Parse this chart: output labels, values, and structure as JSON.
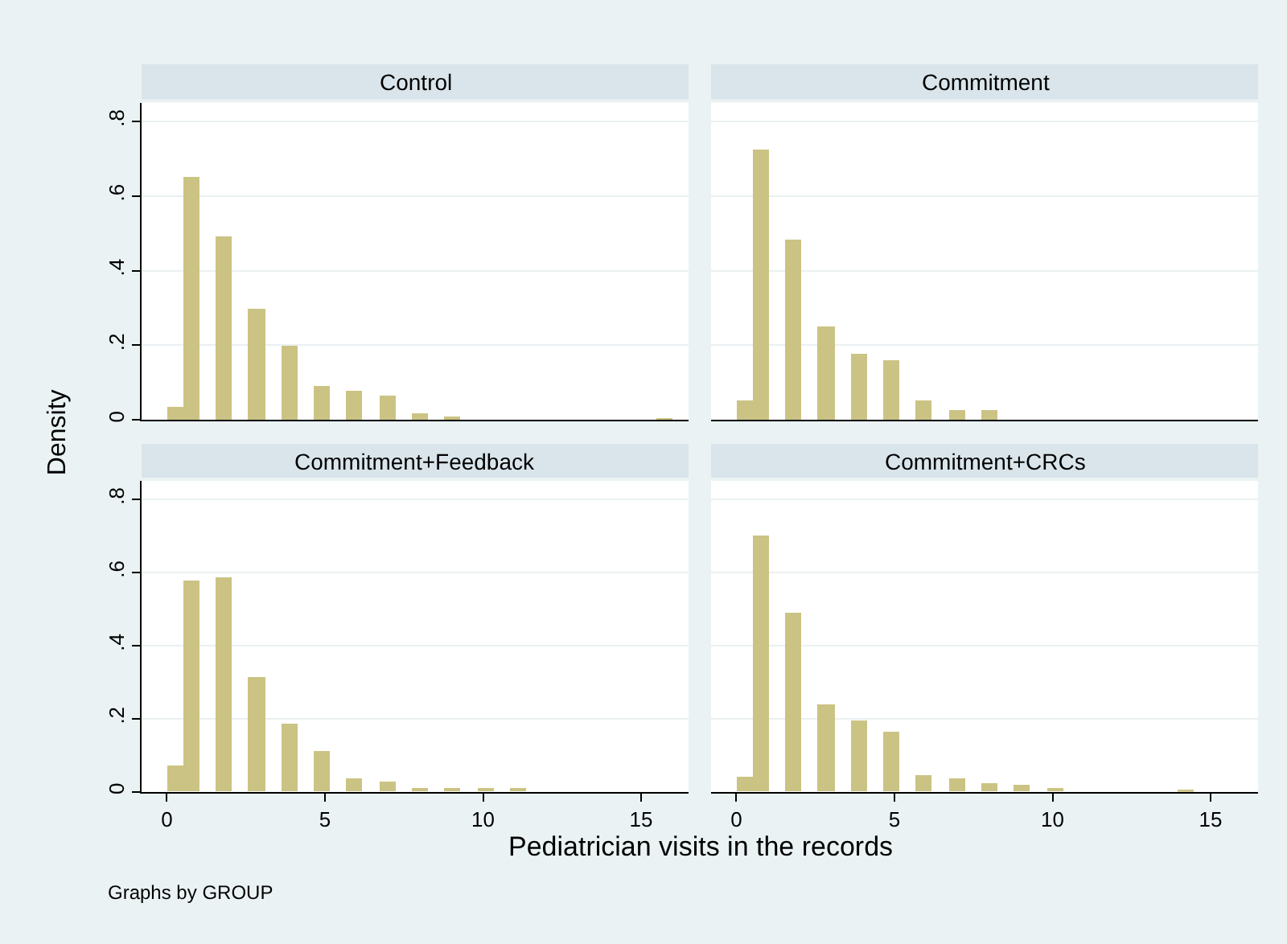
{
  "chart_data": [
    {
      "type": "histogram",
      "title": "Control",
      "ylabel": "Density",
      "tick_labels": "y",
      "grid": "y",
      "color": "#cbc384",
      "bins": [
        0,
        0.52,
        1.03,
        1.55,
        2.06,
        2.58,
        3.1,
        3.61,
        4.13,
        4.65,
        5.16,
        5.68,
        6.19,
        6.71,
        7.23,
        7.74,
        8.26,
        8.77,
        9.29,
        9.81,
        10.32,
        10.84,
        11.35,
        11.87,
        12.39,
        12.9,
        13.42,
        13.94,
        14.45,
        14.97,
        15.48,
        16
      ],
      "values": [
        0.038,
        0.651,
        0,
        0.493,
        0,
        0.297,
        0,
        0.198,
        0,
        0.09,
        0,
        0.081,
        0,
        0.064,
        0,
        0.02,
        0,
        0.012,
        0,
        0,
        0,
        0,
        0,
        0,
        0,
        0,
        0,
        0,
        0,
        0,
        0.007
      ],
      "xlim": [
        -0.8,
        16.5
      ],
      "ylim": [
        0,
        0.85
      ],
      "xticks": [
        0,
        5,
        10,
        15
      ],
      "yticks": [
        0,
        {
          "value": 0.2,
          "label": ".2"
        },
        {
          "value": 0.4,
          "label": ".4"
        },
        {
          "value": 0.6,
          "label": ".6"
        },
        {
          "value": 0.8,
          "label": ".8"
        }
      ]
    },
    {
      "type": "histogram",
      "title": "Commitment",
      "tick_labels": false,
      "grid": "y",
      "color": "#cbc384",
      "bins": [
        0,
        0.52,
        1.03,
        1.55,
        2.06,
        2.58,
        3.1,
        3.61,
        4.13,
        4.65,
        5.16,
        5.68,
        6.19,
        6.71,
        7.23,
        7.74,
        8.26,
        8.77,
        9.29,
        9.81,
        10.32,
        10.84,
        11.35,
        11.87,
        12.39,
        12.9,
        13.42,
        13.94,
        14.45,
        14.97,
        15.48,
        16
      ],
      "values": [
        0.052,
        0.724,
        0,
        0.484,
        0,
        0.251,
        0,
        0.176,
        0,
        0.16,
        0,
        0.052,
        0,
        0.029,
        0,
        0.029,
        0,
        0,
        0,
        0,
        0,
        0,
        0,
        0,
        0,
        0,
        0,
        0,
        0,
        0,
        0
      ],
      "xlim": [
        -0.8,
        16.5
      ],
      "ylim": [
        0,
        0.85
      ],
      "xticks": [
        0,
        5,
        10,
        15
      ],
      "yticks": [
        0,
        0.2,
        0.4,
        0.6,
        0.8
      ]
    },
    {
      "type": "histogram",
      "title": "Commitment+Feedback",
      "xlabel": "Pediatrician visits in the records",
      "annotations": [
        "Graphs by GROUP"
      ],
      "grid": "y",
      "color": "#cbc384",
      "bins": [
        0,
        0.52,
        1.03,
        1.55,
        2.06,
        2.58,
        3.1,
        3.61,
        4.13,
        4.65,
        5.16,
        5.68,
        6.19,
        6.71,
        7.23,
        7.74,
        8.26,
        8.77,
        9.29,
        9.81,
        10.32,
        10.84,
        11.35,
        11.87,
        12.39,
        12.9,
        13.42,
        13.94,
        14.45,
        14.97,
        15.48,
        16
      ],
      "values": [
        0.074,
        0.579,
        0,
        0.585,
        0,
        0.315,
        0,
        0.187,
        0,
        0.112,
        0,
        0.035,
        0,
        0.026,
        0,
        0.012,
        0,
        0.012,
        0,
        0.012,
        0,
        0.012,
        0,
        0,
        0,
        0,
        0,
        0,
        0,
        0,
        0
      ],
      "xlim": [
        -0.8,
        16.5
      ],
      "ylim": [
        0,
        0.85
      ],
      "xticks": [
        0,
        5,
        10,
        15
      ],
      "yticks": [
        0,
        {
          "value": 0.2,
          "label": ".2"
        },
        {
          "value": 0.4,
          "label": ".4"
        },
        {
          "value": 0.6,
          "label": ".6"
        },
        {
          "value": 0.8,
          "label": ".8"
        }
      ]
    },
    {
      "type": "histogram",
      "title": "Commitment+CRCs",
      "tick_labels": "x",
      "grid": "y",
      "color": "#cbc384",
      "bins": [
        0,
        0.52,
        1.03,
        1.55,
        2.06,
        2.58,
        3.1,
        3.61,
        4.13,
        4.65,
        5.16,
        5.68,
        6.19,
        6.71,
        7.23,
        7.74,
        8.26,
        8.77,
        9.29,
        9.81,
        10.32,
        10.84,
        11.35,
        11.87,
        12.39,
        12.9,
        13.42,
        13.94,
        14.45,
        14.97,
        15.48,
        16
      ],
      "values": [
        0.039,
        0.7,
        0,
        0.488,
        0,
        0.237,
        0,
        0.195,
        0,
        0.165,
        0,
        0.045,
        0,
        0.035,
        0,
        0.025,
        0,
        0.017,
        0,
        0.012,
        0,
        0,
        0,
        0,
        0,
        0,
        0,
        0.006,
        0,
        0,
        0
      ],
      "xlim": [
        -0.8,
        16.5
      ],
      "ylim": [
        0,
        0.85
      ],
      "xticks": [
        0,
        5,
        10,
        15
      ],
      "yticks": [
        0,
        0.2,
        0.4,
        0.6,
        0.8
      ]
    }
  ]
}
